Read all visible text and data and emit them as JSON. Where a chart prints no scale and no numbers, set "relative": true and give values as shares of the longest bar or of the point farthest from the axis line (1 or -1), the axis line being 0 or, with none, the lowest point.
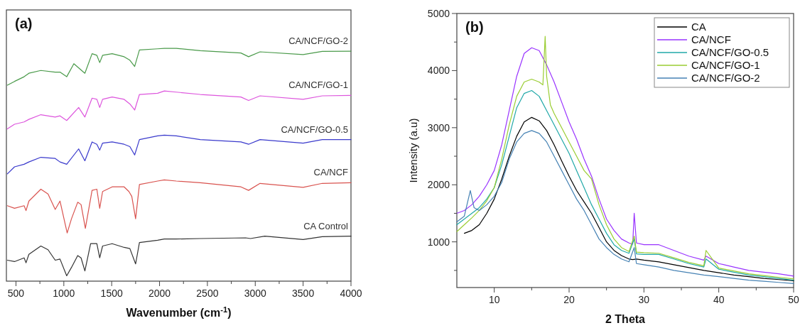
{
  "chart_data": [
    {
      "type": "line",
      "relative": true,
      "xlabel": "Wavenumber (cm$^{-1}$)",
      "annotations": [
        "(a)"
      ],
      "tick_labels": "x",
      "legend": false,
      "grid": false,
      "xlim": [
        400,
        4000
      ],
      "xticks": [
        500,
        {
          "value": 750,
          "label": null
        },
        1000,
        {
          "value": 1250,
          "label": null
        },
        1500,
        {
          "value": 1750,
          "label": null
        },
        2000,
        {
          "value": 2250,
          "label": null
        },
        2500,
        {
          "value": 2750,
          "label": null
        },
        3000,
        {
          "value": 3250,
          "label": null
        },
        3500,
        {
          "value": 3750,
          "label": null
        },
        4000
      ],
      "series": [
        {
          "name": "CA Control",
          "color": "#333333",
          "x": [
            410,
            485,
            585,
            605,
            635,
            760,
            835,
            910,
            960,
            1030,
            1080,
            1145,
            1180,
            1220,
            1280,
            1345,
            1375,
            1405,
            1505,
            1630,
            1690,
            1750,
            1790,
            1980,
            2050,
            2175,
            2425,
            2900,
            2950,
            3100,
            3500,
            3700,
            4000
          ],
          "values": [
            0.09,
            0.084,
            0.1,
            0.079,
            0.115,
            0.151,
            0.135,
            0.09,
            0.095,
            0.023,
            0.059,
            0.11,
            0.1,
            0.044,
            0.161,
            0.161,
            0.1,
            0.151,
            0.161,
            0.145,
            0.14,
            0.074,
            0.166,
            0.176,
            0.181,
            0.181,
            0.183,
            0.186,
            0.183,
            0.193,
            0.179,
            0.191,
            0.193
          ]
        },
        {
          "name": "CA/NCF",
          "color": "#d9534f",
          "x": [
            410,
            485,
            585,
            605,
            635,
            760,
            835,
            910,
            960,
            1035,
            1080,
            1145,
            1180,
            1225,
            1295,
            1345,
            1375,
            1405,
            1505,
            1630,
            1680,
            1710,
            1750,
            1790,
            1980,
            2050,
            2175,
            2425,
            2850,
            2930,
            3050,
            3500,
            3700,
            4000
          ],
          "values": [
            0.324,
            0.313,
            0.324,
            0.303,
            0.344,
            0.395,
            0.374,
            0.308,
            0.344,
            0.207,
            0.268,
            0.339,
            0.329,
            0.227,
            0.39,
            0.395,
            0.313,
            0.385,
            0.405,
            0.405,
            0.385,
            0.364,
            0.268,
            0.415,
            0.43,
            0.435,
            0.43,
            0.423,
            0.405,
            0.39,
            0.42,
            0.403,
            0.42,
            0.423
          ]
        },
        {
          "name": "CA/NCF/GO-0.5",
          "color": "#3a3acc",
          "x": [
            410,
            485,
            585,
            635,
            760,
            910,
            960,
            1030,
            1155,
            1220,
            1295,
            1345,
            1375,
            1405,
            1505,
            1630,
            1690,
            1740,
            1790,
            1980,
            2050,
            2175,
            2425,
            2850,
            2930,
            3050,
            3500,
            3700,
            4000
          ],
          "values": [
            0.461,
            0.491,
            0.502,
            0.512,
            0.532,
            0.527,
            0.512,
            0.502,
            0.568,
            0.517,
            0.598,
            0.588,
            0.563,
            0.593,
            0.598,
            0.588,
            0.578,
            0.542,
            0.608,
            0.624,
            0.627,
            0.624,
            0.608,
            0.598,
            0.588,
            0.608,
            0.593,
            0.608,
            0.608
          ]
        },
        {
          "name": "CA/NCF/GO-1",
          "color": "#dd55dd",
          "x": [
            410,
            485,
            585,
            635,
            760,
            910,
            960,
            1030,
            1155,
            1220,
            1295,
            1345,
            1375,
            1405,
            1505,
            1630,
            1690,
            1740,
            1790,
            1980,
            2050,
            2175,
            2425,
            2850,
            2930,
            3050,
            3500,
            3700,
            4000
          ],
          "values": [
            0.654,
            0.674,
            0.684,
            0.695,
            0.715,
            0.705,
            0.71,
            0.69,
            0.746,
            0.705,
            0.786,
            0.781,
            0.746,
            0.781,
            0.791,
            0.781,
            0.761,
            0.735,
            0.802,
            0.807,
            0.817,
            0.812,
            0.802,
            0.791,
            0.776,
            0.796,
            0.781,
            0.796,
            0.798
          ]
        },
        {
          "name": "CA/NCF/GO-2",
          "color": "#4a9a4a",
          "x": [
            410,
            485,
            585,
            635,
            760,
            910,
            960,
            1030,
            1105,
            1220,
            1295,
            1345,
            1375,
            1405,
            1505,
            1630,
            1690,
            1740,
            1790,
            1980,
            2050,
            2175,
            2425,
            2850,
            2930,
            3050,
            3500,
            3700,
            4000
          ],
          "values": [
            0.842,
            0.858,
            0.878,
            0.893,
            0.905,
            0.898,
            0.898,
            0.878,
            0.934,
            0.893,
            0.977,
            0.97,
            0.939,
            0.97,
            0.977,
            0.964,
            0.949,
            0.922,
            0.993,
            0.998,
            1,
            1,
            0.99,
            0.98,
            0.964,
            0.985,
            0.973,
            0.987,
            0.988
          ]
        }
      ]
    },
    {
      "type": "line",
      "xlabel": "2 Theta",
      "ylabel": "Intensity (a.u)",
      "annotations": [
        "(b)"
      ],
      "legend": "top right",
      "grid": false,
      "xlim": [
        5,
        50
      ],
      "xticks": [
        10,
        {
          "value": 15,
          "label": null
        },
        20,
        {
          "value": 25,
          "label": null
        },
        30,
        {
          "value": 35,
          "label": null
        },
        40,
        {
          "value": 45,
          "label": null
        },
        50
      ],
      "ylim": [
        200,
        5000
      ],
      "yticks": [
        {
          "value": 500,
          "label": null
        },
        1000,
        {
          "value": 1500,
          "label": null
        },
        2000,
        {
          "value": 2500,
          "label": null
        },
        3000,
        {
          "value": 3500,
          "label": null
        },
        4000,
        {
          "value": 4500,
          "label": null
        },
        5000
      ],
      "series": [
        {
          "name": "CA",
          "color": "#000000",
          "x": [
            6,
            7,
            8,
            9,
            10,
            11,
            12,
            13,
            14,
            15,
            16,
            17,
            18,
            19,
            20,
            21,
            22,
            23,
            24,
            25,
            26,
            27,
            28,
            28.5,
            29,
            30,
            32,
            34,
            36,
            38,
            40,
            42,
            44,
            46,
            48,
            50
          ],
          "values": [
            1150,
            1200,
            1300,
            1500,
            1750,
            2100,
            2500,
            2850,
            3100,
            3180,
            3120,
            2950,
            2700,
            2420,
            2150,
            1900,
            1700,
            1500,
            1250,
            1000,
            850,
            760,
            700,
            690,
            700,
            680,
            650,
            600,
            550,
            500,
            460,
            420,
            390,
            360,
            340,
            320
          ]
        },
        {
          "name": "CA/NCF",
          "color": "#9933ff",
          "x": [
            5,
            6,
            7,
            8,
            9,
            10,
            11,
            12,
            13,
            14,
            15,
            16,
            17,
            18,
            19,
            20,
            21,
            22,
            23,
            24,
            25,
            26,
            27,
            28,
            28.5,
            28.7,
            29,
            30,
            32,
            34,
            36,
            38,
            38.3,
            40,
            42,
            44,
            46,
            48,
            50
          ],
          "values": [
            1500,
            1550,
            1650,
            1800,
            2000,
            2250,
            2700,
            3300,
            3900,
            4300,
            4400,
            4350,
            4100,
            3800,
            3450,
            3100,
            2800,
            2450,
            2150,
            1750,
            1400,
            1200,
            1050,
            980,
            960,
            1500,
            980,
            950,
            950,
            850,
            750,
            680,
            750,
            620,
            560,
            500,
            470,
            440,
            400
          ]
        },
        {
          "name": "CA/NCF/GO-0.5",
          "color": "#20a8a8",
          "x": [
            5,
            6,
            7,
            8,
            9,
            10,
            11,
            12,
            13,
            14,
            15,
            16,
            17,
            18,
            19,
            20,
            21,
            22,
            23,
            24,
            25,
            26,
            27,
            28,
            28.7,
            29,
            30,
            32,
            34,
            36,
            38,
            38.3,
            40,
            42,
            44,
            46,
            48,
            50
          ],
          "values": [
            1300,
            1400,
            1500,
            1600,
            1750,
            1950,
            2350,
            2850,
            3350,
            3600,
            3650,
            3550,
            3300,
            3050,
            2800,
            2550,
            2250,
            1950,
            1650,
            1400,
            1150,
            950,
            850,
            800,
            1050,
            790,
            780,
            780,
            700,
            620,
            560,
            700,
            520,
            470,
            420,
            390,
            360,
            330
          ]
        },
        {
          "name": "CA/NCF/GO-1",
          "color": "#9acd32",
          "x": [
            5,
            6,
            7,
            8,
            9,
            10,
            11,
            12,
            13,
            14,
            15,
            16,
            16.5,
            16.8,
            17,
            17.5,
            18,
            19,
            20,
            21,
            22,
            23,
            24,
            25,
            26,
            27,
            28,
            28.7,
            29,
            30,
            32,
            34,
            36,
            38,
            38.3,
            40,
            42,
            44,
            46,
            48,
            50
          ],
          "values": [
            1180,
            1300,
            1420,
            1550,
            1720,
            1950,
            2450,
            3050,
            3550,
            3800,
            3850,
            3800,
            3750,
            4600,
            3900,
            3400,
            3250,
            3000,
            2750,
            2500,
            2250,
            2100,
            1650,
            1300,
            1050,
            900,
            830,
            1100,
            820,
            810,
            800,
            720,
            640,
            580,
            850,
            540,
            490,
            440,
            410,
            380,
            350
          ]
        },
        {
          "name": "CA/NCF/GO-2",
          "color": "#4682b4",
          "x": [
            5,
            6,
            6.8,
            7.3,
            8,
            9,
            10,
            11,
            12,
            13,
            14,
            15,
            16,
            17,
            18,
            19,
            20,
            21,
            22,
            23,
            24,
            25,
            26,
            27,
            28,
            28.7,
            29,
            30,
            32,
            34,
            36,
            38,
            40,
            42,
            44,
            46,
            48,
            50
          ],
          "values": [
            1350,
            1450,
            1900,
            1600,
            1550,
            1650,
            1800,
            2040,
            2450,
            2750,
            2900,
            2950,
            2900,
            2750,
            2500,
            2250,
            2000,
            1750,
            1550,
            1300,
            1050,
            900,
            780,
            700,
            650,
            900,
            620,
            600,
            560,
            500,
            460,
            420,
            390,
            360,
            330,
            310,
            290,
            270
          ]
        }
      ]
    }
  ]
}
